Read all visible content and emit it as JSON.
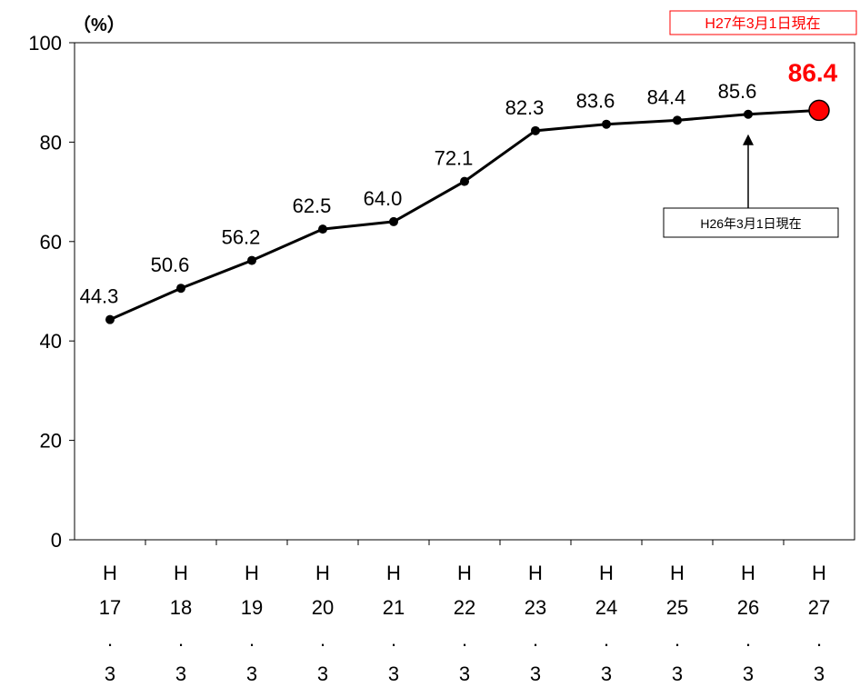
{
  "chart_data": {
    "type": "line",
    "unit_label": "（%）",
    "stamp_label": "H27年3月1日現在",
    "categories": [
      [
        "H",
        "17",
        ".",
        "3"
      ],
      [
        "H",
        "18",
        ".",
        "3"
      ],
      [
        "H",
        "19",
        ".",
        "3"
      ],
      [
        "H",
        "20",
        ".",
        "3"
      ],
      [
        "H",
        "21",
        ".",
        "3"
      ],
      [
        "H",
        "22",
        ".",
        "3"
      ],
      [
        "H",
        "23",
        ".",
        "3"
      ],
      [
        "H",
        "24",
        ".",
        "3"
      ],
      [
        "H",
        "25",
        ".",
        "3"
      ],
      [
        "H",
        "26",
        ".",
        "3"
      ],
      [
        "H",
        "27",
        ".",
        "3"
      ]
    ],
    "series": [
      {
        "values": [
          44.3,
          50.6,
          56.2,
          62.5,
          64.0,
          72.1,
          82.3,
          83.6,
          84.4,
          85.6,
          86.4
        ],
        "labels": [
          "44.3",
          "50.6",
          "56.2",
          "62.5",
          "64.0",
          "72.1",
          "82.3",
          "83.6",
          "84.4",
          "85.6",
          "86.4"
        ],
        "color": "#000000",
        "highlight_index": 10,
        "highlight_color": "#ff0000"
      }
    ],
    "ylim": [
      0,
      100
    ],
    "yticks": [
      0,
      20,
      40,
      60,
      80,
      100
    ],
    "grid": false,
    "legend": "none",
    "annotation": {
      "text": "H26年3月1日現在",
      "target_index": 9
    }
  }
}
